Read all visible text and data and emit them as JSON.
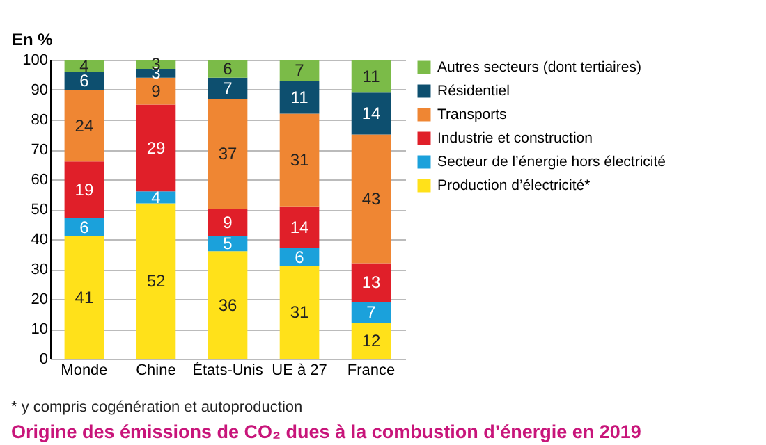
{
  "chart_data": {
    "type": "bar",
    "title": "Origine des émissions de CO₂ dues à la combustion d’énergie en 2019",
    "ylabel": "En %",
    "annotations": [
      "* y compris cogénération et autoproduction"
    ],
    "categories": [
      "Monde",
      "Chine",
      "États-Unis",
      "UE à 27",
      "France"
    ],
    "stacked": true,
    "data_labels": true,
    "grid": "y",
    "legend": "right",
    "ylim": [
      0,
      100
    ],
    "yticks": [
      0,
      10,
      20,
      30,
      40,
      50,
      60,
      70,
      80,
      90,
      100
    ],
    "series": [
      {
        "name": "Production d’électricité*",
        "color": "#ffe11a",
        "values": [
          41,
          52,
          36,
          31,
          12
        ]
      },
      {
        "name": "Secteur de l’énergie hors électricité",
        "color": "#1ba1db",
        "values": [
          6,
          4,
          5,
          6,
          7
        ]
      },
      {
        "name": "Industrie et construction",
        "color": "#e01f29",
        "values": [
          19,
          29,
          9,
          14,
          13
        ]
      },
      {
        "name": "Transports",
        "color": "#ef8633",
        "values": [
          24,
          9,
          37,
          31,
          43
        ]
      },
      {
        "name": "Résidentiel",
        "color": "#0d4f6f",
        "values": [
          6,
          3,
          7,
          11,
          14
        ]
      },
      {
        "name": "Autres secteurs (dont tertiaires)",
        "color": "#7bbb48",
        "values": [
          4,
          3,
          6,
          7,
          11
        ]
      }
    ]
  }
}
